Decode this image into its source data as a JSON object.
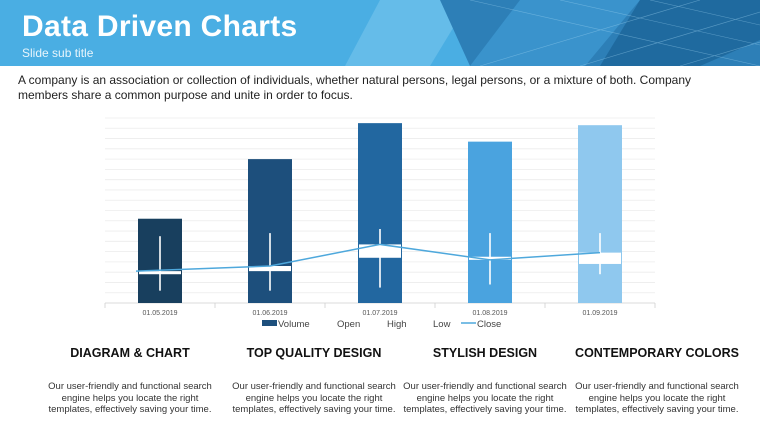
{
  "slide": {
    "title": "Data Driven Charts",
    "subtitle": "Slide sub title",
    "intro": "A company is an association or collection of individuals, whether natural persons, legal persons, or a mixture of both. Company members share a common purpose and unite in order to focus."
  },
  "colors": {
    "header": "#4aaee3",
    "close_line": "#4ea8dc",
    "bars": [
      "#183f5e",
      "#1d4f7c",
      "#2267a0",
      "#4aa3df",
      "#8fc8ee"
    ]
  },
  "chart_data": {
    "type": "bar",
    "title": "",
    "categories": [
      "01.05.2019",
      "01.06.2019",
      "01.07.2019",
      "01.08.2019",
      "01.09.2019"
    ],
    "series": [
      {
        "name": "Volume",
        "values": [
          82,
          140,
          175,
          157,
          173
        ]
      },
      {
        "name": "Open",
        "values": [
          28,
          31,
          44,
          45,
          38
        ]
      },
      {
        "name": "High",
        "values": [
          65,
          68,
          72,
          68,
          68
        ]
      },
      {
        "name": "Low",
        "values": [
          12,
          12,
          15,
          18,
          28
        ]
      },
      {
        "name": "Close",
        "values": [
          31,
          36,
          57,
          42,
          49
        ]
      }
    ],
    "ylim": [
      0,
      180
    ],
    "legend": [
      "Volume",
      "Open",
      "High",
      "Low",
      "Close"
    ],
    "legend_position": "bottom",
    "grid": true
  },
  "features": [
    {
      "title": "DIAGRAM  & CHART",
      "text": "Our user-friendly and functional search engine helps you locate the right templates, effectively saving your time."
    },
    {
      "title": "TOP QUALITY  DESIGN",
      "text": "Our user-friendly and functional search engine helps you locate the right templates, effectively saving your time."
    },
    {
      "title": "STYLISH DESIGN",
      "text": "Our user-friendly and functional search engine helps you locate the right templates, effectively saving your time."
    },
    {
      "title": "CONTEMPORARY COLORS",
      "text": "Our user-friendly and functional search engine helps you locate the right templates, effectively saving your time."
    }
  ]
}
